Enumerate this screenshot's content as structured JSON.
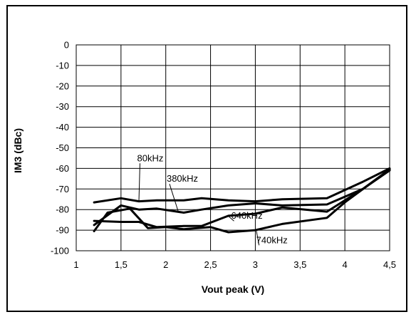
{
  "chart_data": {
    "type": "line",
    "xlabel": "Vout peak (V)",
    "ylabel": "IM3  (dBc)",
    "xlim": [
      1,
      4.5
    ],
    "ylim": [
      -100,
      0
    ],
    "x_ticks": [
      1,
      1.5,
      2,
      2.5,
      3,
      3.5,
      4,
      4.5
    ],
    "x_tick_labels": [
      "1",
      "1,5",
      "2",
      "2,5",
      "3",
      "3,5",
      "4",
      "4,5"
    ],
    "y_ticks": [
      0,
      -10,
      -20,
      -30,
      -40,
      -50,
      -60,
      -70,
      -80,
      -90,
      -100
    ],
    "y_tick_labels": [
      "0",
      "-10",
      "-20",
      "-30",
      "-40",
      "-50",
      "-60",
      "-70",
      "-80",
      "-90",
      "-100"
    ],
    "grid": true,
    "series": [
      {
        "name": "80kHz",
        "x": [
          1.2,
          1.5,
          1.7,
          1.9,
          2.2,
          2.4,
          2.7,
          3.0,
          3.3,
          3.8,
          4.2,
          4.5
        ],
        "y": [
          -76.5,
          -74.5,
          -76,
          -75.5,
          -75.5,
          -74.5,
          -75.5,
          -76,
          -75,
          -74.5,
          -66.5,
          -60
        ]
      },
      {
        "name": "380kHz",
        "x": [
          1.2,
          1.5,
          1.7,
          1.9,
          2.2,
          2.4,
          2.7,
          3.0,
          3.3,
          3.8,
          4.2,
          4.5
        ],
        "y": [
          -87.5,
          -78,
          -80,
          -79.5,
          -81.5,
          -80,
          -78,
          -77,
          -78,
          -77.5,
          -70,
          -60.5
        ]
      },
      {
        "name": "640kHz",
        "x": [
          1.2,
          1.5,
          1.7,
          1.9,
          2.2,
          2.4,
          2.7,
          3.0,
          3.3,
          3.8,
          4.2,
          4.5
        ],
        "y": [
          -85.5,
          -86,
          -86,
          -88.5,
          -88,
          -88,
          -83,
          -82,
          -79,
          -81,
          -70,
          -61
        ]
      },
      {
        "name": "740kHz",
        "x": [
          1.2,
          1.35,
          1.6,
          1.8,
          2.0,
          2.2,
          2.5,
          2.7,
          3.0,
          3.3,
          3.8,
          4.0,
          4.5
        ],
        "y": [
          -90.5,
          -81.5,
          -79.5,
          -89,
          -88.5,
          -89.5,
          -88.5,
          -91,
          -90,
          -87,
          -84,
          -76.5,
          -60.5
        ]
      }
    ],
    "annotations": [
      {
        "text": "80kHz",
        "series": "80kHz"
      },
      {
        "text": "380kHz",
        "series": "380kHz"
      },
      {
        "text": "640kHz",
        "series": "640kHz"
      },
      {
        "text": "740kHz",
        "series": "740kHz"
      }
    ]
  }
}
